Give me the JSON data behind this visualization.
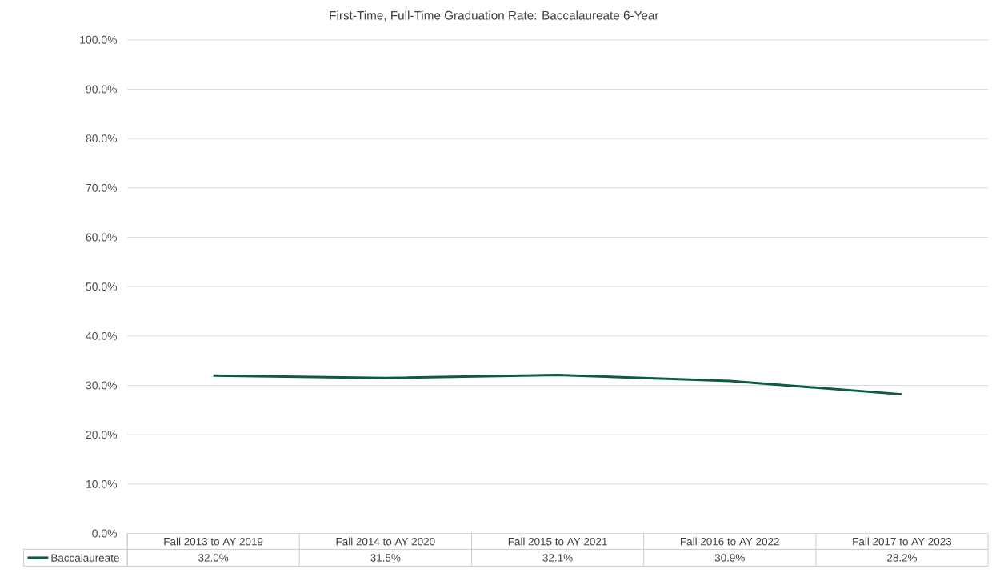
{
  "chart_data": {
    "type": "line",
    "title": "First-Time, Full-Time Graduation Rate: Baccalaureate 6-Year",
    "categories": [
      "Fall 2013 to AY 2019",
      "Fall 2014 to AY 2020",
      "Fall 2015 to AY 2021",
      "Fall 2016 to AY 2022",
      "Fall 2017 to AY 2023"
    ],
    "series": [
      {
        "name": "Baccalaureate",
        "color": "#0b5d3b",
        "values": [
          32.0,
          31.5,
          32.1,
          30.9,
          28.2
        ],
        "value_labels": [
          "32.0%",
          "31.5%",
          "32.1%",
          "30.9%",
          "28.2%"
        ]
      }
    ],
    "ylim": [
      0,
      100
    ],
    "yticks": [
      {
        "value": 0,
        "label": "0.0%"
      },
      {
        "value": 10,
        "label": "10.0%"
      },
      {
        "value": 20,
        "label": "20.0%"
      },
      {
        "value": 30,
        "label": "30.0%"
      },
      {
        "value": 40,
        "label": "40.0%"
      },
      {
        "value": 50,
        "label": "50.0%"
      },
      {
        "value": 60,
        "label": "60.0%"
      },
      {
        "value": 70,
        "label": "70.0%"
      },
      {
        "value": 80,
        "label": "80.0%"
      },
      {
        "value": 90,
        "label": "90.0%"
      },
      {
        "value": 100,
        "label": "100.0%"
      }
    ],
    "grid": "y",
    "legend": "bottom",
    "marker": "none",
    "line_style": "solid"
  }
}
